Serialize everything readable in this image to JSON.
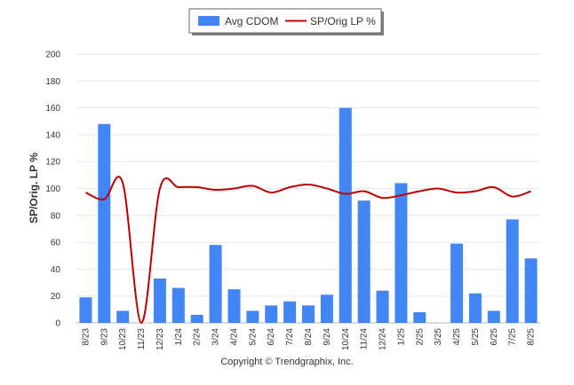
{
  "chart_data": {
    "type": "bar+line",
    "ylabel": "SP/Orig. LP %",
    "ylim": [
      0,
      200
    ],
    "yticks": [
      "0",
      "20",
      "40",
      "60",
      "80",
      "100",
      "120",
      "140",
      "160",
      "180",
      "200"
    ],
    "grid": true,
    "legend_position": "top-center",
    "categories": [
      "8/23",
      "9/23",
      "10/23",
      "11/23",
      "12/23",
      "1/24",
      "2/24",
      "3/24",
      "4/24",
      "5/24",
      "6/24",
      "7/24",
      "8/24",
      "9/24",
      "10/24",
      "11/24",
      "12/24",
      "1/25",
      "2/25",
      "3/25",
      "4/25",
      "5/25",
      "6/25",
      "7/25",
      "8/25"
    ],
    "series": [
      {
        "name": "Avg CDOM",
        "type": "bar",
        "color": "#4285f4",
        "values": [
          19,
          148,
          9,
          null,
          33,
          26,
          6,
          58,
          25,
          9,
          13,
          16,
          13,
          21,
          160,
          91,
          24,
          104,
          8,
          null,
          59,
          22,
          9,
          77,
          48
        ]
      },
      {
        "name": "SP/Orig LP %",
        "type": "line",
        "color": "#c00000",
        "values": [
          97,
          92,
          104,
          0,
          100,
          101,
          101,
          99,
          100,
          102,
          97,
          101,
          103,
          100,
          96,
          98,
          93,
          95,
          98,
          100,
          97,
          98,
          101,
          94,
          98
        ]
      }
    ]
  },
  "footer": {
    "copyright": "Copyright © Trendgraphix, Inc."
  }
}
